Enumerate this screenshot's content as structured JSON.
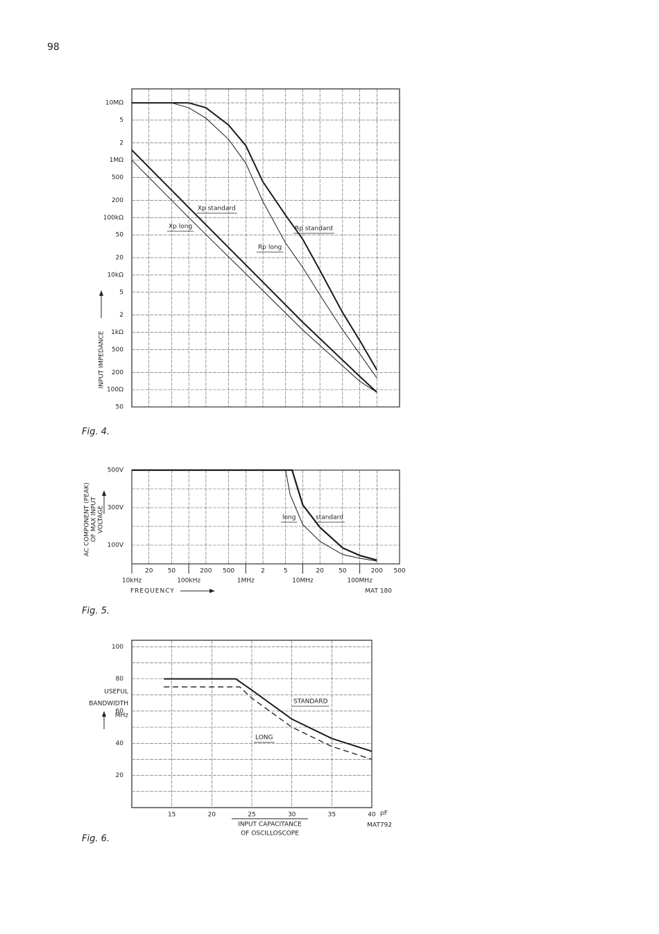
{
  "page_number": "98",
  "chart_data": [
    {
      "type": "line",
      "caption": "Fig. 4.",
      "ylabel": "INPUT IMPEDANCE",
      "xscale": "log",
      "yscale": "log",
      "xlim": [
        10000,
        500000000
      ],
      "ylim": [
        50,
        17500000
      ],
      "xgrid": [
        20000,
        50000,
        100000,
        200000,
        500000,
        1000000,
        2000000,
        5000000,
        10000000,
        20000000,
        50000000,
        100000000,
        200000000
      ],
      "yticks": [
        {
          "value": 10000000,
          "label": "10MΩ"
        },
        {
          "value": 5000000,
          "label": "5"
        },
        {
          "value": 2000000,
          "label": "2"
        },
        {
          "value": 1000000,
          "label": "1MΩ"
        },
        {
          "value": 500000,
          "label": "500"
        },
        {
          "value": 200000,
          "label": "200"
        },
        {
          "value": 100000,
          "label": "100kΩ"
        },
        {
          "value": 50000,
          "label": "50"
        },
        {
          "value": 20000,
          "label": "20"
        },
        {
          "value": 10000,
          "label": "10kΩ"
        },
        {
          "value": 5000,
          "label": "5"
        },
        {
          "value": 2000,
          "label": "2"
        },
        {
          "value": 1000,
          "label": "1kΩ"
        },
        500,
        200,
        {
          "value": 100,
          "label": "100Ω"
        },
        50
      ],
      "series": [
        {
          "name": "Xp standard",
          "color": "#1a1a1a",
          "width": 2,
          "x": [
            10000,
            100000,
            1000000,
            10000000,
            100000000,
            200000000
          ],
          "values": [
            1500000,
            150000,
            15000,
            1500,
            170,
            90
          ]
        },
        {
          "name": "Xp long",
          "color": "#1a1a1a",
          "width": 1,
          "x": [
            10000,
            100000,
            1000000,
            10000000,
            100000000,
            200000000
          ],
          "values": [
            1000000,
            100000,
            10500,
            1100,
            140,
            90
          ]
        },
        {
          "name": "Rp standard",
          "color": "#1a1a1a",
          "width": 2,
          "x": [
            10000,
            100000,
            200000,
            500000,
            1000000,
            2000000,
            5000000,
            10000000,
            20000000,
            50000000,
            100000000,
            200000000
          ],
          "values": [
            10000000,
            10000000,
            8200000,
            4100000,
            1800000,
            420000,
            110000,
            42000,
            12000,
            2200,
            720,
            220
          ]
        },
        {
          "name": "Rp long",
          "color": "#1a1a1a",
          "width": 1,
          "x": [
            10000,
            50000,
            100000,
            200000,
            500000,
            1000000,
            2000000,
            5000000,
            10000000,
            20000000,
            50000000,
            100000000,
            200000000
          ],
          "values": [
            10000000,
            10000000,
            8200000,
            5400000,
            2300000,
            890000,
            190000,
            36000,
            13500,
            4500,
            1100,
            420,
            160
          ]
        }
      ]
    },
    {
      "type": "line",
      "caption": "Fig. 5.",
      "ylabel": [
        "AC COMPONENT (PEAK)",
        "OF MAX INPUT",
        "VOLTAGE"
      ],
      "xlabel": "FREQUENCY",
      "code": "MAT 180",
      "xscale": "log",
      "yscale": "linear",
      "xlim": [
        10000,
        500000000
      ],
      "ylim": [
        0,
        500
      ],
      "xticks": [
        {
          "value": 20000,
          "label": "20"
        },
        {
          "value": 50000,
          "label": "50"
        },
        {
          "value": 200000,
          "label": "200"
        },
        {
          "value": 500000,
          "label": "500"
        },
        {
          "value": 2000000,
          "label": "2"
        },
        {
          "value": 5000000,
          "label": "5"
        },
        {
          "value": 20000000,
          "label": "20"
        },
        {
          "value": 50000000,
          "label": "50"
        },
        {
          "value": 200000000,
          "label": "200"
        },
        {
          "value": 500000000,
          "label": "500"
        }
      ],
      "xdecades": [
        {
          "value": 10000,
          "label": "10kHz"
        },
        {
          "value": 100000,
          "label": "100kHz"
        },
        {
          "value": 1000000,
          "label": "1MHz"
        },
        {
          "value": 10000000,
          "label": "10MHz"
        },
        {
          "value": 100000000,
          "label": "100MHz"
        }
      ],
      "yticks": [
        {
          "value": 500,
          "label": "500V"
        },
        {
          "value": 300,
          "label": "300V"
        },
        {
          "value": 100,
          "label": "100V"
        }
      ],
      "ygrid": [
        400,
        200,
        0
      ],
      "series": [
        {
          "name": "standard",
          "color": "#1a1a1a",
          "width": 2.2,
          "x": [
            10000,
            6500000,
            10000000,
            20000000,
            50000000,
            100000000,
            200000000
          ],
          "values": [
            500,
            500,
            315,
            195,
            85,
            45,
            20
          ]
        },
        {
          "name": "long",
          "color": "#1a1a1a",
          "width": 1,
          "x": [
            10000,
            5000000,
            6000000,
            10000000,
            20000000,
            50000000,
            100000000,
            200000000
          ],
          "values": [
            500,
            500,
            370,
            210,
            120,
            50,
            30,
            15
          ]
        }
      ]
    },
    {
      "type": "line",
      "caption": "Fig. 6.",
      "ylabel": [
        "USEFUL",
        "BANDWIDTH",
        "MHz"
      ],
      "xlabel": [
        "INPUT CAPACITANCE",
        "OF OSCILLOSCOPE"
      ],
      "xunit": "pF",
      "code": "MAT792",
      "xscale": "linear",
      "yscale": "linear",
      "xlim": [
        10,
        40
      ],
      "ylim": [
        0,
        104
      ],
      "xticks": [
        15,
        20,
        25,
        30,
        35,
        40
      ],
      "yticks": [
        100,
        80,
        60,
        40,
        20
      ],
      "ygrid": [
        90,
        70,
        50,
        30,
        10
      ],
      "series": [
        {
          "name": "STANDARD",
          "color": "#1a1a1a",
          "width": 2,
          "x": [
            14,
            23,
            25,
            30,
            35,
            40
          ],
          "values": [
            80,
            80,
            73,
            55,
            43,
            35
          ]
        },
        {
          "name": "LONG",
          "color": "#1a1a1a",
          "width": 1.3,
          "dash": true,
          "x": [
            14,
            23.5,
            25,
            30,
            35,
            40
          ],
          "values": [
            75,
            75,
            68,
            50,
            38,
            30
          ]
        }
      ]
    }
  ]
}
